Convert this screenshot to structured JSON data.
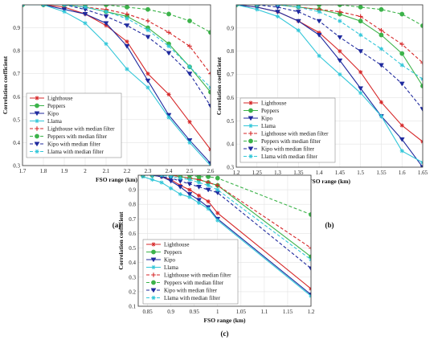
{
  "legend_labels": [
    "Lighthouse",
    "Peppers",
    "Kipo",
    "Llama",
    "Lighthouse with median filter",
    "Peppers with median filter",
    "Kipo with median filter",
    "Llama with median filter"
  ],
  "colors": {
    "Lighthouse": "#d62728",
    "Peppers": "#3cb34a",
    "Kipo": "#1f2a9e",
    "Llama": "#33c7d9"
  },
  "styles": {
    "plain": {
      "line": "solid",
      "markers": [
        "star",
        "circle",
        "triangle-down",
        "star"
      ]
    },
    "median_filter": {
      "line": "dashed",
      "markers": [
        "plus",
        "circle",
        "triangle-down",
        "star"
      ]
    }
  },
  "chart_data": [
    {
      "type": "line",
      "panel_label": "(a)",
      "xlabel": "FSO range (km)",
      "ylabel": "Correlation coefficient",
      "xlim": [
        1.7,
        2.6
      ],
      "ylim": [
        0.3,
        1.0
      ],
      "grid": true,
      "legend_position": "bottom-left",
      "x_ticks": [
        "1.7",
        "1.8",
        "1.9",
        "2",
        "2.1",
        "2.2",
        "2.3",
        "2.4",
        "2.5",
        "2.6"
      ],
      "y_ticks": [
        "0.3",
        "0.4",
        "0.5",
        "0.6",
        "0.7",
        "0.8",
        "0.9"
      ],
      "x": [
        1.7,
        1.8,
        1.9,
        2.0,
        2.1,
        2.2,
        2.3,
        2.4,
        2.5,
        2.6
      ],
      "series": [
        {
          "name": "Lighthouse",
          "values": [
            1.0,
            1.0,
            0.99,
            0.96,
            0.91,
            0.84,
            0.7,
            0.61,
            0.49,
            0.37
          ]
        },
        {
          "name": "Peppers",
          "values": [
            1.0,
            1.0,
            1.0,
            0.99,
            0.97,
            0.95,
            0.9,
            0.83,
            0.73,
            0.62
          ]
        },
        {
          "name": "Kipo",
          "values": [
            1.0,
            1.0,
            0.98,
            0.96,
            0.92,
            0.82,
            0.67,
            0.52,
            0.41,
            0.31
          ]
        },
        {
          "name": "Llama",
          "values": [
            1.0,
            1.0,
            0.97,
            0.92,
            0.83,
            0.72,
            0.64,
            0.51,
            0.4,
            0.3
          ]
        },
        {
          "name": "Lighthouse with median filter",
          "values": [
            1.0,
            1.0,
            1.0,
            0.99,
            0.98,
            0.96,
            0.93,
            0.88,
            0.82,
            0.7
          ]
        },
        {
          "name": "Peppers with median filter",
          "values": [
            1.0,
            1.0,
            1.0,
            1.0,
            1.0,
            0.99,
            0.98,
            0.96,
            0.93,
            0.88
          ]
        },
        {
          "name": "Kipo with median filter",
          "values": [
            1.0,
            1.0,
            1.0,
            0.98,
            0.95,
            0.91,
            0.86,
            0.79,
            0.7,
            0.56
          ]
        },
        {
          "name": "Llama with median filter",
          "values": [
            1.0,
            1.0,
            1.0,
            0.99,
            0.97,
            0.94,
            0.89,
            0.82,
            0.73,
            0.64
          ]
        }
      ]
    },
    {
      "type": "line",
      "panel_label": "(b)",
      "xlabel": "FSO range (km)",
      "ylabel": "Correlation coefficient",
      "xlim": [
        1.2,
        1.65
      ],
      "ylim": [
        0.3,
        1.0
      ],
      "grid": true,
      "legend_position": "bottom-left",
      "x_ticks": [
        "1.2",
        "1.25",
        "1.3",
        "1.35",
        "1.4",
        "1.45",
        "1.5",
        "1.55",
        "1.6",
        "1.65"
      ],
      "y_ticks": [
        "0.3",
        "0.4",
        "0.5",
        "0.6",
        "0.7",
        "0.8",
        "0.9"
      ],
      "x": [
        1.2,
        1.25,
        1.3,
        1.35,
        1.4,
        1.45,
        1.5,
        1.55,
        1.6,
        1.65
      ],
      "series": [
        {
          "name": "Lighthouse",
          "values": [
            1.0,
            0.99,
            0.97,
            0.93,
            0.88,
            0.8,
            0.71,
            0.58,
            0.48,
            0.41
          ]
        },
        {
          "name": "Peppers",
          "values": [
            1.0,
            1.0,
            1.0,
            0.99,
            0.98,
            0.96,
            0.93,
            0.87,
            0.79,
            0.65
          ]
        },
        {
          "name": "Kipo",
          "values": [
            1.0,
            0.99,
            0.97,
            0.93,
            0.87,
            0.76,
            0.64,
            0.52,
            0.42,
            0.3
          ]
        },
        {
          "name": "Llama",
          "values": [
            1.0,
            0.98,
            0.95,
            0.89,
            0.78,
            0.7,
            0.62,
            0.52,
            0.37,
            0.32
          ]
        },
        {
          "name": "Lighthouse with median filter",
          "values": [
            1.0,
            1.0,
            1.0,
            0.99,
            0.98,
            0.97,
            0.95,
            0.89,
            0.83,
            0.75
          ]
        },
        {
          "name": "Peppers with median filter",
          "values": [
            1.0,
            1.0,
            1.0,
            1.0,
            1.0,
            1.0,
            0.99,
            0.98,
            0.96,
            0.91
          ]
        },
        {
          "name": "Kipo with median filter",
          "values": [
            1.0,
            1.0,
            0.99,
            0.97,
            0.93,
            0.86,
            0.8,
            0.74,
            0.66,
            0.55
          ]
        },
        {
          "name": "Llama with median filter",
          "values": [
            1.0,
            1.0,
            1.0,
            0.99,
            0.97,
            0.93,
            0.87,
            0.81,
            0.74,
            0.68
          ]
        }
      ]
    },
    {
      "type": "line",
      "panel_label": "(c)",
      "xlabel": "FSO range (km)",
      "ylabel": "Correlation coefficient",
      "xlim": [
        0.83,
        1.2
      ],
      "ylim": [
        0.1,
        1.0
      ],
      "grid": true,
      "legend_position": "bottom-left",
      "x_ticks": [
        "0.85",
        "0.9",
        "0.95",
        "1",
        "1.05",
        "1.1",
        "1.15",
        "1.2"
      ],
      "y_ticks": [
        "0.1",
        "0.2",
        "0.3",
        "0.4",
        "0.5",
        "0.6",
        "0.7",
        "0.8",
        "0.9"
      ],
      "x": [
        0.84,
        0.86,
        0.88,
        0.9,
        0.92,
        0.94,
        0.96,
        0.98,
        1.0,
        1.2
      ],
      "series": [
        {
          "name": "Lighthouse",
          "values": [
            1.0,
            1.0,
            0.99,
            0.97,
            0.93,
            0.9,
            0.86,
            0.82,
            0.74,
            0.22
          ]
        },
        {
          "name": "Peppers",
          "values": [
            1.0,
            1.0,
            1.0,
            1.0,
            0.99,
            0.98,
            0.97,
            0.95,
            0.93,
            0.44
          ]
        },
        {
          "name": "Kipo",
          "values": [
            1.0,
            1.0,
            0.99,
            0.96,
            0.92,
            0.87,
            0.83,
            0.78,
            0.7,
            0.18
          ]
        },
        {
          "name": "Llama",
          "values": [
            0.99,
            0.97,
            0.95,
            0.91,
            0.87,
            0.85,
            0.81,
            0.77,
            0.69,
            0.17
          ]
        },
        {
          "name": "Lighthouse with median filter",
          "values": [
            1.0,
            1.0,
            1.0,
            1.0,
            0.99,
            0.98,
            0.97,
            0.95,
            0.93,
            0.5
          ]
        },
        {
          "name": "Peppers with median filter",
          "values": [
            1.0,
            1.0,
            1.0,
            1.0,
            1.0,
            1.0,
            0.99,
            0.99,
            0.98,
            0.73
          ]
        },
        {
          "name": "Kipo with median filter",
          "values": [
            1.0,
            1.0,
            0.99,
            0.98,
            0.96,
            0.94,
            0.92,
            0.9,
            0.88,
            0.36
          ]
        },
        {
          "name": "Llama with median filter",
          "values": [
            1.0,
            1.0,
            1.0,
            0.99,
            0.98,
            0.97,
            0.95,
            0.93,
            0.9,
            0.42
          ]
        }
      ]
    }
  ]
}
